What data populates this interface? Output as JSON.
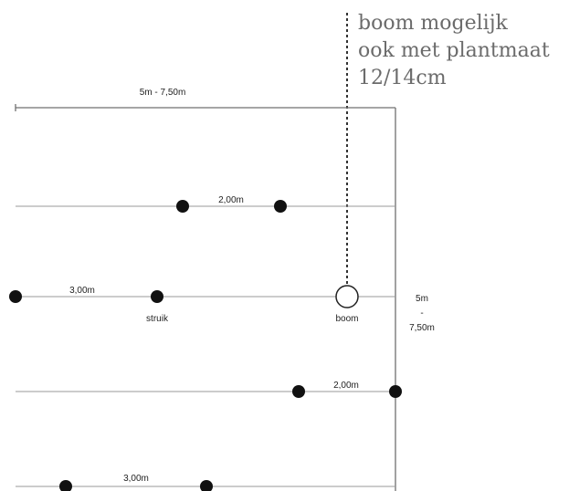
{
  "note": {
    "lines": [
      "boom mogelijk",
      "ook met plantmaat",
      "12/14cm"
    ]
  },
  "dimensions": {
    "width_label": "5m - 7,50m",
    "height_label_top": "5m",
    "height_label_dash": "-",
    "height_label_bottom": "7,50m"
  },
  "rows": [
    {
      "spacing_label": "2,00m"
    },
    {
      "spacing_label": "3,00m",
      "shrub_label": "struik",
      "tree_label": "boom"
    },
    {
      "spacing_label": "2,00m"
    },
    {
      "spacing_label": "3,00m"
    }
  ]
}
